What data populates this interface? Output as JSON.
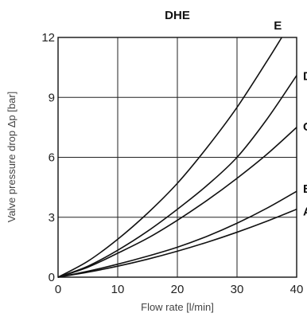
{
  "chart_data": {
    "type": "line",
    "title": "DHE",
    "xlabel": "Flow rate [l/min]",
    "ylabel": "Valve pressure drop Δp [bar]",
    "xlim": [
      0,
      40
    ],
    "ylim": [
      0,
      12
    ],
    "x_ticks": [
      0,
      10,
      20,
      30,
      40
    ],
    "y_ticks": [
      0,
      3,
      6,
      9,
      12
    ],
    "grid": true,
    "series": [
      {
        "name": "E",
        "x": [
          0,
          5,
          10,
          15,
          20,
          25,
          30,
          35,
          37.5
        ],
        "y": [
          0,
          0.8,
          1.9,
          3.2,
          4.7,
          6.5,
          8.5,
          10.8,
          12.0
        ]
      },
      {
        "name": "D",
        "x": [
          0,
          5,
          10,
          15,
          20,
          25,
          30,
          35,
          40
        ],
        "y": [
          0,
          0.55,
          1.35,
          2.3,
          3.4,
          4.6,
          6.0,
          7.9,
          10.1
        ]
      },
      {
        "name": "C",
        "x": [
          0,
          5,
          10,
          15,
          20,
          25,
          30,
          35,
          40
        ],
        "y": [
          0,
          0.5,
          1.2,
          1.95,
          2.85,
          3.85,
          4.95,
          6.15,
          7.5
        ]
      },
      {
        "name": "B",
        "x": [
          0,
          5,
          10,
          15,
          20,
          25,
          30,
          35,
          40
        ],
        "y": [
          0,
          0.3,
          0.65,
          1.05,
          1.5,
          2.05,
          2.7,
          3.45,
          4.3
        ]
      },
      {
        "name": "A",
        "x": [
          0,
          5,
          10,
          15,
          20,
          25,
          30,
          35,
          40
        ],
        "y": [
          0,
          0.25,
          0.55,
          0.9,
          1.3,
          1.75,
          2.25,
          2.8,
          3.4
        ]
      }
    ]
  }
}
